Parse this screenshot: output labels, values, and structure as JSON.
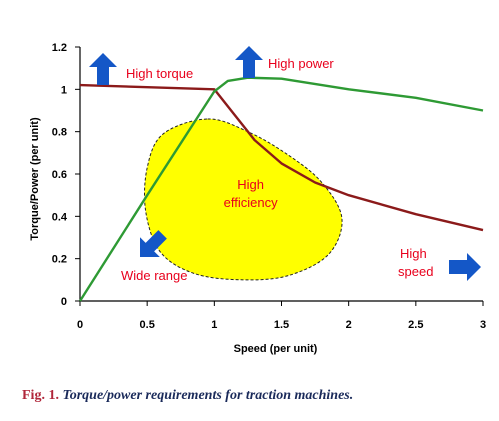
{
  "chart_data": {
    "type": "line",
    "xlabel": "Speed (per unit)",
    "ylabel": "Torque/Power (per unit)",
    "xlim": [
      0,
      3
    ],
    "ylim": [
      0,
      1.2
    ],
    "x_ticks": [
      0,
      0.5,
      1,
      1.5,
      2,
      2.5,
      3
    ],
    "y_ticks": [
      0,
      0.2,
      0.4,
      0.6,
      0.8,
      1,
      1.2
    ],
    "x_tick_labels": [
      "0",
      "0.5",
      "1",
      "1.5",
      "2",
      "2.5",
      "3"
    ],
    "y_tick_labels": [
      "0",
      "0.2",
      "0.4",
      "0.6",
      "0.8",
      "1",
      "1.2"
    ],
    "grid": false,
    "series": [
      {
        "color": "#8b1a1a",
        "points": [
          [
            0,
            1.02
          ],
          [
            0.5,
            1.01
          ],
          [
            1,
            1.0
          ],
          [
            1.15,
            0.88
          ],
          [
            1.3,
            0.76
          ],
          [
            1.5,
            0.65
          ],
          [
            1.75,
            0.56
          ],
          [
            2,
            0.5
          ],
          [
            2.5,
            0.41
          ],
          [
            3,
            0.335
          ]
        ]
      },
      {
        "color": "#2e9a34",
        "points": [
          [
            0,
            0
          ],
          [
            0.5,
            0.5
          ],
          [
            1,
            0.99
          ],
          [
            1.1,
            1.04
          ],
          [
            1.25,
            1.055
          ],
          [
            1.5,
            1.05
          ],
          [
            2,
            1.0
          ],
          [
            2.5,
            0.96
          ],
          [
            3,
            0.9
          ]
        ]
      }
    ],
    "regions": [
      {
        "label": "High efficiency",
        "label_lines": [
          "High",
          "efficiency"
        ],
        "fill": "#ffff00",
        "outline": [
          [
            0.95,
            0.86
          ],
          [
            1.25,
            0.8
          ],
          [
            1.55,
            0.69
          ],
          [
            1.8,
            0.56
          ],
          [
            1.95,
            0.39
          ],
          [
            1.85,
            0.22
          ],
          [
            1.55,
            0.12
          ],
          [
            1.2,
            0.1
          ],
          [
            0.85,
            0.13
          ],
          [
            0.6,
            0.23
          ],
          [
            0.49,
            0.42
          ],
          [
            0.5,
            0.63
          ],
          [
            0.62,
            0.79
          ]
        ],
        "label_color": "#e8001c"
      }
    ],
    "annotations": [
      {
        "text": "High torque",
        "x": 0.35,
        "y": 1.08,
        "color": "#e8001c",
        "arrow": "up"
      },
      {
        "text": "High power",
        "x": 1.42,
        "y": 1.12,
        "color": "#e8001c",
        "arrow": "up"
      },
      {
        "text": "Wide range",
        "x": 0.3,
        "y": 0.09,
        "color": "#e8001c",
        "arrow": "down-left"
      },
      {
        "text": "High",
        "text2": "speed",
        "x": 2.55,
        "y": 0.21,
        "color": "#e8001c",
        "arrow": "right"
      }
    ],
    "arrow_color": "#1457c7"
  },
  "caption": {
    "label": "Fig. 1.",
    "text": "Torque/power requirements for traction machines."
  }
}
